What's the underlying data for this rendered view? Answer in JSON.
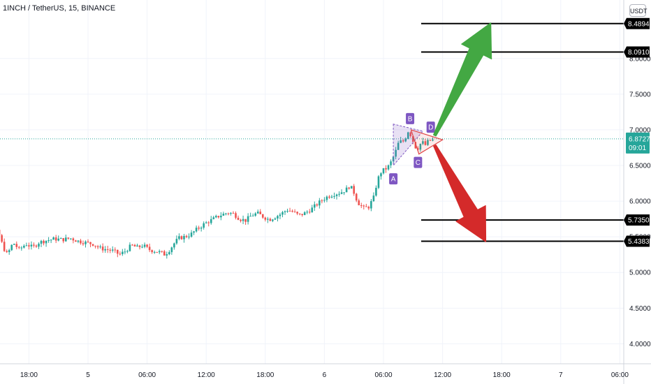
{
  "header": {
    "symbol_title": "1INCH / TetherUS, 15, BINANCE",
    "currency": "USDT"
  },
  "colors": {
    "up": "#26a69a",
    "down": "#ef5350",
    "arrow_up": "#43a843",
    "arrow_down": "#d42a2a",
    "pattern": "#7e57c2",
    "last_price": "#26a69a"
  },
  "chart_data": {
    "type": "candlestick",
    "symbol": "1INCH / TetherUS",
    "interval": "15",
    "exchange": "BINANCE",
    "ylim": [
      3.72,
      8.82
    ],
    "x_range_hours": [
      -12,
      32.4
    ],
    "y_ticks": [
      "4.0000",
      "4.5000",
      "5.0000",
      "5.5000",
      "6.0000",
      "6.5000",
      "7.0000",
      "7.5000",
      "8.0000"
    ],
    "x_ticks": [
      {
        "label": "18:00",
        "t": -6
      },
      {
        "label": "5",
        "t": 0
      },
      {
        "label": "06:00",
        "t": 6
      },
      {
        "label": "12:00",
        "t": 12
      },
      {
        "label": "18:00",
        "t": 18
      },
      {
        "label": "6",
        "t": 24
      },
      {
        "label": "06:00",
        "t": 30
      },
      {
        "label": "12:00",
        "t": 36
      },
      {
        "label": "18:00",
        "t": 42
      },
      {
        "label": "7",
        "t": 48
      },
      {
        "label": "06:00",
        "t": 54
      }
    ],
    "path": [
      [
        -12,
        5.8
      ],
      [
        -11,
        5.88
      ],
      [
        -10.2,
        5.78
      ],
      [
        -9.5,
        5.62
      ],
      [
        -9,
        5.52
      ],
      [
        -8.6,
        5.35
      ],
      [
        -8.2,
        5.25
      ],
      [
        -7.6,
        5.42
      ],
      [
        -7,
        5.32
      ],
      [
        -6.3,
        5.4
      ],
      [
        -5.6,
        5.35
      ],
      [
        -5,
        5.42
      ],
      [
        -4.2,
        5.45
      ],
      [
        -3.4,
        5.47
      ],
      [
        -2.6,
        5.46
      ],
      [
        -1.8,
        5.48
      ],
      [
        -1,
        5.44
      ],
      [
        -0.3,
        5.42
      ],
      [
        0.5,
        5.4
      ],
      [
        1.2,
        5.34
      ],
      [
        2,
        5.32
      ],
      [
        2.6,
        5.3
      ],
      [
        3.2,
        5.25
      ],
      [
        3.8,
        5.3
      ],
      [
        4.4,
        5.38
      ],
      [
        5,
        5.35
      ],
      [
        5.6,
        5.38
      ],
      [
        6.2,
        5.32
      ],
      [
        6.8,
        5.3
      ],
      [
        7.4,
        5.28
      ],
      [
        7.8,
        5.25
      ],
      [
        8.3,
        5.32
      ],
      [
        8.7,
        5.4
      ],
      [
        9.2,
        5.48
      ],
      [
        9.8,
        5.5
      ],
      [
        10.4,
        5.53
      ],
      [
        11,
        5.6
      ],
      [
        11.8,
        5.68
      ],
      [
        12.6,
        5.74
      ],
      [
        13.4,
        5.8
      ],
      [
        14.2,
        5.84
      ],
      [
        14.8,
        5.82
      ],
      [
        15.4,
        5.75
      ],
      [
        16,
        5.73
      ],
      [
        16.6,
        5.8
      ],
      [
        17.2,
        5.83
      ],
      [
        17.8,
        5.78
      ],
      [
        18.4,
        5.74
      ],
      [
        19,
        5.78
      ],
      [
        19.6,
        5.82
      ],
      [
        20.2,
        5.88
      ],
      [
        20.8,
        5.85
      ],
      [
        21.4,
        5.8
      ],
      [
        22,
        5.83
      ],
      [
        22.6,
        5.88
      ],
      [
        23.2,
        5.95
      ],
      [
        23.8,
        6.02
      ],
      [
        24.4,
        6.07
      ],
      [
        25,
        6.1
      ],
      [
        25.6,
        6.12
      ],
      [
        26.2,
        6.16
      ],
      [
        26.6,
        6.22
      ],
      [
        27,
        6.12
      ],
      [
        27.4,
        5.98
      ],
      [
        28,
        5.9
      ],
      [
        28.5,
        5.92
      ],
      [
        29,
        6.05
      ],
      [
        29.4,
        6.3
      ],
      [
        29.8,
        6.42
      ],
      [
        30.2,
        6.45
      ],
      [
        30.6,
        6.5
      ],
      [
        31,
        6.62
      ],
      [
        31.3,
        6.72
      ],
      [
        31.6,
        6.85
      ],
      [
        31.9,
        6.82
      ],
      [
        32.2,
        6.88
      ],
      [
        32.5,
        6.98
      ],
      [
        32.8,
        6.92
      ],
      [
        33.1,
        6.8
      ],
      [
        33.4,
        6.72
      ],
      [
        33.7,
        6.8
      ],
      [
        34,
        6.82
      ],
      [
        34.3,
        6.78
      ],
      [
        34.6,
        6.86
      ],
      [
        34.9,
        6.84
      ],
      [
        35.2,
        6.88
      ]
    ],
    "last_price": {
      "label": "6.8727",
      "value": 6.8727,
      "countdown": "09:01"
    },
    "target_lines": [
      {
        "label": "8.4894",
        "value": 8.4894
      },
      {
        "label": "8.0910",
        "value": 8.091
      },
      {
        "label": "5.7350",
        "value": 5.735
      },
      {
        "label": "5.4383",
        "value": 5.4383
      }
    ],
    "pattern_points": [
      {
        "label": "A",
        "t": 31.0,
        "v": 6.45,
        "pos": "below"
      },
      {
        "label": "B",
        "t": 32.7,
        "v": 7.02,
        "pos": "above"
      },
      {
        "label": "C",
        "t": 33.5,
        "v": 6.68,
        "pos": "below"
      },
      {
        "label": "D",
        "t": 34.8,
        "v": 6.9,
        "pos": "above"
      }
    ],
    "triangle_purple": [
      [
        31.0,
        7.08
      ],
      [
        31.0,
        6.5
      ],
      [
        34.0,
        6.98
      ]
    ],
    "triangle_red": [
      [
        32.8,
        7.0
      ],
      [
        36.0,
        6.86
      ],
      [
        33.6,
        6.66
      ]
    ],
    "arrow_up": {
      "from": [
        35.2,
        6.92
      ],
      "to": [
        40.9,
        8.5
      ]
    },
    "arrow_down": {
      "from": [
        35.2,
        6.78
      ],
      "to": [
        40.4,
        5.43
      ]
    }
  }
}
